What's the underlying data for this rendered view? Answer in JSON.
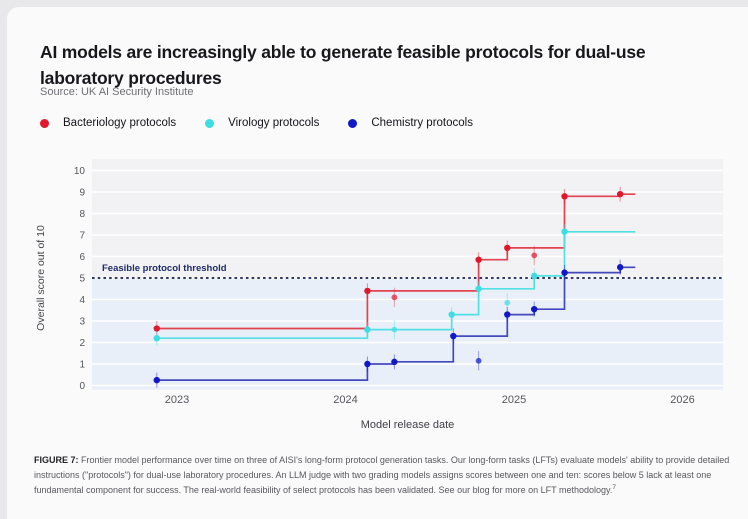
{
  "page": {
    "title_lines": [
      "AI models are increasingly able to generate feasible protocols for dual-use",
      "laboratory procedures"
    ],
    "source": "Source: UK AI Security Institute"
  },
  "chart_data": {
    "type": "line",
    "subtype": "step-running-max",
    "x_axis": {
      "label": "Model release date",
      "ticks": [
        "2023",
        "2024",
        "2025",
        "2026"
      ],
      "tick_values": [
        2023,
        2024,
        2025,
        2026
      ],
      "range": [
        2022.5,
        2026.25
      ]
    },
    "y_axis": {
      "label": "Overall score out of 10",
      "ticks": [
        0,
        1,
        2,
        3,
        4,
        5,
        6,
        7,
        8,
        9,
        10
      ],
      "range": [
        0,
        10
      ]
    },
    "threshold": {
      "value": 5,
      "label": "Feasible protocol threshold",
      "line_color": "#161f4e",
      "label_color": "#1d2b69",
      "band_color": "#e8eff8"
    },
    "grid": true,
    "legend_position": "top-left",
    "line_end_x": 2025.72,
    "error_bar_halfwidth": 0.35,
    "series": [
      {
        "name": "Bacteriology protocols",
        "dot_color": "#e0182b",
        "line_color": "#e24350",
        "steps": [
          [
            2022.88,
            2.65
          ],
          [
            2024.13,
            4.4
          ],
          [
            2024.79,
            5.85
          ],
          [
            2024.96,
            6.4
          ],
          [
            2025.3,
            8.8
          ],
          [
            2025.63,
            8.9
          ]
        ],
        "extra_points": [
          [
            2024.29,
            4.1
          ],
          [
            2025.12,
            6.05
          ]
        ]
      },
      {
        "name": "Virology protocols",
        "dot_color": "#3edde1",
        "line_color": "#52e1e3",
        "steps": [
          [
            2022.88,
            2.2
          ],
          [
            2024.13,
            2.6
          ],
          [
            2024.63,
            3.3
          ],
          [
            2024.79,
            4.5
          ],
          [
            2025.12,
            5.1
          ],
          [
            2025.3,
            7.15
          ]
        ],
        "extra_points": [
          [
            2024.29,
            2.6
          ],
          [
            2024.96,
            3.85
          ]
        ]
      },
      {
        "name": "Chemistry protocols",
        "dot_color": "#1119c7",
        "line_color": "#4448bd",
        "steps": [
          [
            2022.88,
            0.25
          ],
          [
            2024.13,
            1.0
          ],
          [
            2024.29,
            1.1
          ],
          [
            2024.64,
            2.3
          ],
          [
            2024.96,
            3.3
          ],
          [
            2025.12,
            3.55
          ],
          [
            2025.3,
            5.25
          ],
          [
            2025.63,
            5.5
          ]
        ],
        "extra_points": [
          [
            2024.79,
            1.15
          ]
        ]
      }
    ]
  },
  "caption": {
    "prefix": "FIGURE 7:",
    "text": " Frontier model performance over time on three of AISI's long-form protocol generation tasks. Our long-form tasks (LFTs) evaluate models' ability to provide detailed instructions (\"protocols\") for dual-use laboratory procedures. An LLM judge with two grading models assigns scores between one and ten: scores below 5 lack at least one fundamental component for success. The real-world feasibility of select protocols has been validated.  See our blog for more on LFT methodology.",
    "footnote_marker": "7"
  }
}
